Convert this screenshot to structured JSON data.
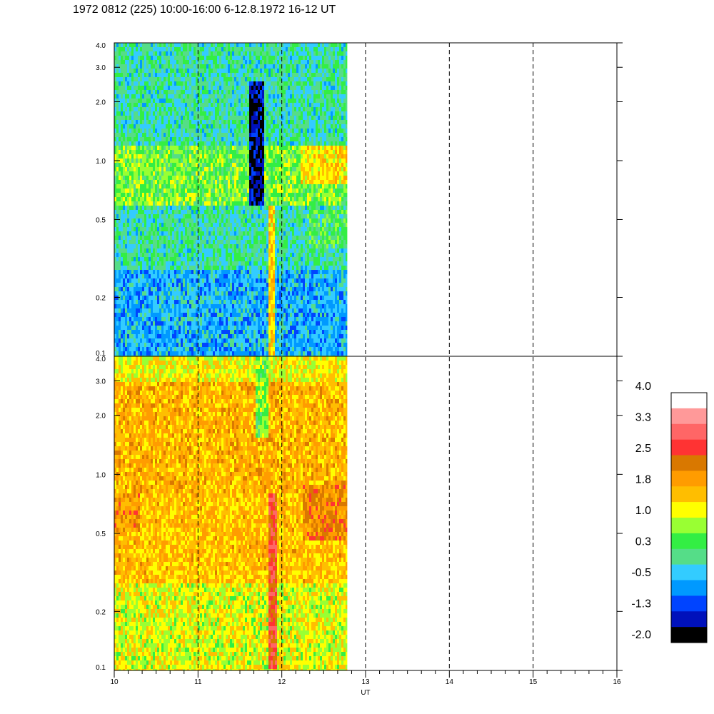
{
  "title": "1972 0812 (225) 10:00-16:00 6-12.8.1972  16-12 UT",
  "chart_data": {
    "type": "heatmap",
    "xlabel": "UT",
    "x_ticks": [
      "10",
      "11",
      "12",
      "13",
      "14",
      "15",
      "16"
    ],
    "xlim": [
      10,
      16
    ],
    "data_end_x": 12.78,
    "dashed_lines_x": [
      11,
      12,
      13,
      14,
      15
    ],
    "y_scale": "log",
    "ylim": [
      0.1,
      4.0
    ],
    "y_ticks": [
      "0.1",
      "0.2",
      "0.5",
      "1.0",
      "2.0",
      "3.0",
      "4.0"
    ],
    "panels": [
      {
        "id": "upper",
        "bands": [
          {
            "y_from": 0.1,
            "y_to": 0.28,
            "value": -0.5
          },
          {
            "y_from": 0.28,
            "y_to": 0.6,
            "value": 0.0
          },
          {
            "y_from": 0.6,
            "y_to": 1.2,
            "value": 0.6
          },
          {
            "y_from": 1.2,
            "y_to": 4.0,
            "value": 0.0
          }
        ],
        "features": [
          {
            "x_from": 11.62,
            "x_to": 11.78,
            "y_from": 0.6,
            "y_to": 2.5,
            "value": -1.6
          },
          {
            "x_from": 11.85,
            "x_to": 11.93,
            "y_from": 0.1,
            "y_to": 0.6,
            "value": 1.5
          },
          {
            "x_from": 12.22,
            "x_to": 12.78,
            "y_from": 0.75,
            "y_to": 1.2,
            "value": 1.4
          },
          {
            "x_from": 12.3,
            "x_to": 12.78,
            "y_from": 0.35,
            "y_to": 0.55,
            "value": 0.3
          }
        ]
      },
      {
        "id": "lower",
        "bands": [
          {
            "y_from": 0.1,
            "y_to": 0.28,
            "value": 1.1
          },
          {
            "y_from": 0.28,
            "y_to": 0.8,
            "value": 1.6
          },
          {
            "y_from": 0.8,
            "y_to": 3.0,
            "value": 1.7
          },
          {
            "y_from": 3.0,
            "y_to": 4.0,
            "value": 1.2
          }
        ],
        "features": [
          {
            "x_from": 11.85,
            "x_to": 11.94,
            "y_from": 0.1,
            "y_to": 0.8,
            "value": 2.7
          },
          {
            "x_from": 12.25,
            "x_to": 12.78,
            "y_from": 0.45,
            "y_to": 0.9,
            "value": 2.1
          },
          {
            "x_from": 10.0,
            "x_to": 10.3,
            "y_from": 0.5,
            "y_to": 0.8,
            "value": 2.0
          },
          {
            "x_from": 11.7,
            "x_to": 11.85,
            "y_from": 1.5,
            "y_to": 4.0,
            "value": 0.7
          }
        ]
      }
    ],
    "colorbar": {
      "labels": [
        "4.0",
        "3.3",
        "2.5",
        "1.8",
        "1.0",
        "0.3",
        "-0.5",
        "-1.3",
        "-2.0"
      ],
      "range": [
        -2.0,
        4.0
      ],
      "colors": [
        "#ffffff",
        "#ff9999",
        "#ff6666",
        "#ff3333",
        "#d97800",
        "#ff9c00",
        "#ffbe00",
        "#ffff00",
        "#99ff33",
        "#33ee44",
        "#55dd88",
        "#33ccff",
        "#0099ff",
        "#0044ff",
        "#0011bb",
        "#000000"
      ]
    }
  }
}
